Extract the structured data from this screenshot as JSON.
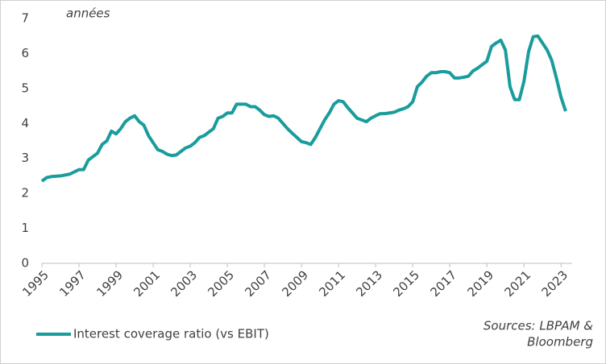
{
  "chart_data": {
    "type": "line",
    "annotation": "années",
    "source": [
      "Sources: LBPAM &",
      "Bloomberg"
    ],
    "x": [
      1995,
      1995.25,
      1995.5,
      1996,
      1996.5,
      1997,
      1997.25,
      1997.5,
      1998,
      1998.25,
      1998.5,
      1998.75,
      1999,
      1999.25,
      1999.5,
      1999.75,
      2000,
      2000.25,
      2000.5,
      2000.75,
      2001,
      2001.25,
      2001.5,
      2001.75,
      2002,
      2002.25,
      2002.5,
      2002.75,
      2003,
      2003.25,
      2003.5,
      2003.75,
      2004,
      2004.25,
      2004.5,
      2004.75,
      2005,
      2005.25,
      2005.5,
      2005.75,
      2006,
      2006.25,
      2006.5,
      2006.75,
      2007,
      2007.25,
      2007.5,
      2007.75,
      2008,
      2008.25,
      2008.5,
      2008.75,
      2009,
      2009.25,
      2009.5,
      2009.75,
      2010,
      2010.25,
      2010.5,
      2010.75,
      2011,
      2011.25,
      2011.5,
      2011.75,
      2012,
      2012.25,
      2012.5,
      2012.75,
      2013,
      2013.25,
      2013.5,
      2013.75,
      2014,
      2014.25,
      2014.5,
      2014.75,
      2015,
      2015.25,
      2015.5,
      2015.75,
      2016,
      2016.25,
      2016.5,
      2016.75,
      2017,
      2017.25,
      2017.5,
      2017.75,
      2018,
      2018.25,
      2018.5,
      2018.75,
      2019,
      2019.25,
      2019.5,
      2019.75,
      2020,
      2020.25,
      2020.5,
      2020.75,
      2021,
      2021.25,
      2021.5,
      2021.75,
      2022,
      2022.25,
      2022.5,
      2022.75,
      2023,
      2023.25
    ],
    "series": [
      {
        "name": "Interest coverage ratio (vs EBIT)",
        "color": "#1a9c9c",
        "values": [
          2.35,
          2.45,
          2.48,
          2.5,
          2.55,
          2.68,
          2.68,
          2.95,
          3.15,
          3.4,
          3.5,
          3.78,
          3.7,
          3.85,
          4.05,
          4.15,
          4.22,
          4.05,
          3.95,
          3.65,
          3.45,
          3.25,
          3.2,
          3.12,
          3.08,
          3.1,
          3.2,
          3.3,
          3.35,
          3.45,
          3.6,
          3.65,
          3.75,
          3.85,
          4.15,
          4.2,
          4.3,
          4.3,
          4.55,
          4.55,
          4.55,
          4.48,
          4.48,
          4.38,
          4.25,
          4.2,
          4.22,
          4.15,
          4.0,
          3.85,
          3.72,
          3.6,
          3.48,
          3.45,
          3.4,
          3.6,
          3.85,
          4.1,
          4.3,
          4.55,
          4.65,
          4.62,
          4.45,
          4.3,
          4.15,
          4.1,
          4.05,
          4.15,
          4.22,
          4.28,
          4.28,
          4.3,
          4.32,
          4.38,
          4.42,
          4.48,
          4.62,
          5.05,
          5.18,
          5.35,
          5.45,
          5.45,
          5.48,
          5.48,
          5.45,
          5.3,
          5.3,
          5.32,
          5.35,
          5.5,
          5.58,
          5.68,
          5.78,
          6.2,
          6.3,
          6.38,
          6.1,
          5.05,
          4.68,
          4.68,
          5.2,
          6.05,
          6.48,
          6.5,
          6.3,
          6.1,
          5.8,
          5.3,
          4.75,
          4.35
        ]
      }
    ],
    "xlim": [
      1995,
      2023.6
    ],
    "xticks": [
      1995,
      1997,
      1999,
      2001,
      2003,
      2005,
      2007,
      2009,
      2011,
      2013,
      2015,
      2017,
      2019,
      2021,
      2023
    ],
    "ylim": [
      0,
      7
    ],
    "yticks": [
      0,
      1,
      2,
      3,
      4,
      5,
      6,
      7
    ],
    "grid": false,
    "legend": "bottom-left"
  }
}
